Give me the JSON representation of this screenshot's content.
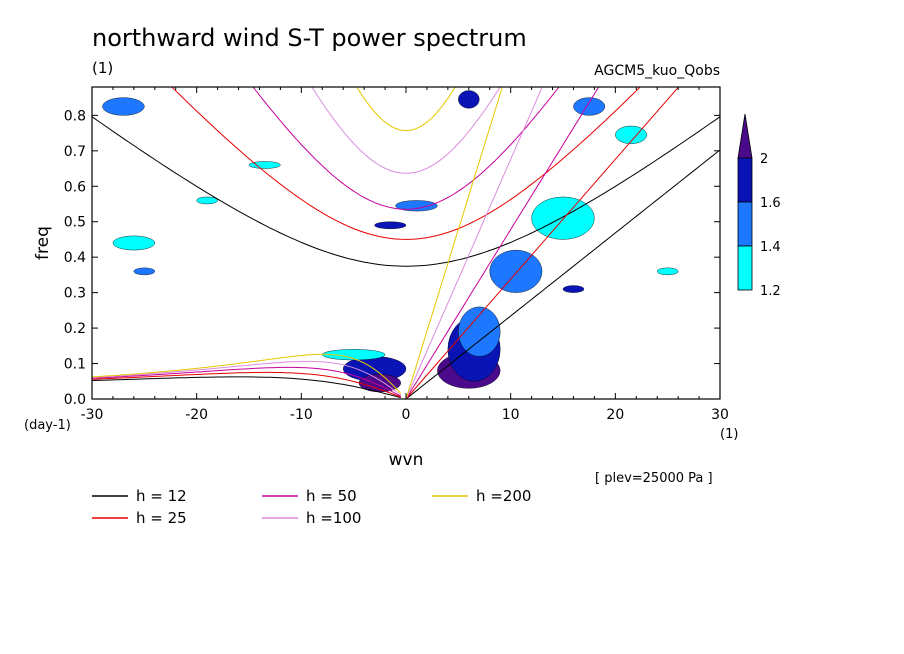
{
  "chart_data": {
    "type": "heatmap",
    "title": "northward wind S-T power spectrum",
    "unit_label": "(1)",
    "experiment": "AGCM5_kuo_Qobs",
    "xlabel": "wvn",
    "x_unit": "(1)",
    "ylabel": "freq",
    "y_unit": "(day-1)",
    "note": "[ plev=25000 Pa ]",
    "xlim": [
      -30,
      30
    ],
    "ylim": [
      0,
      0.88
    ],
    "x_ticks": [
      -30,
      -20,
      -10,
      0,
      10,
      20,
      30
    ],
    "x_tick_labels": [
      "-30",
      "-20",
      "-10",
      "0",
      "10",
      "20",
      "30"
    ],
    "y_ticks": [
      0,
      0.1,
      0.2,
      0.3,
      0.4,
      0.5,
      0.6,
      0.7,
      0.8
    ],
    "y_tick_labels": [
      "0.0",
      "0.1",
      "0.2",
      "0.3",
      "0.4",
      "0.5",
      "0.6",
      "0.7",
      "0.8"
    ],
    "colorbar": {
      "levels": [
        1.2,
        1.4,
        1.6,
        2
      ],
      "level_labels": [
        "1.2",
        "1.4",
        "1.6",
        "2"
      ],
      "colors": [
        "#00ffff",
        "#1e78ff",
        "#0a14b4",
        "#4b0a8c"
      ]
    },
    "power_regions": [
      {
        "x": -6,
        "y": 0.05,
        "w": 6,
        "h": 0.07,
        "level": 2
      },
      {
        "x": -4.5,
        "y": 0.02,
        "w": 4,
        "h": 0.05,
        "level": 3
      },
      {
        "x": 3,
        "y": 0.03,
        "w": 6,
        "h": 0.1,
        "level": 3
      },
      {
        "x": 4,
        "y": 0.05,
        "w": 5,
        "h": 0.18,
        "level": 2
      },
      {
        "x": 5,
        "y": 0.12,
        "w": 4,
        "h": 0.14,
        "level": 1
      },
      {
        "x": 8,
        "y": 0.3,
        "w": 5,
        "h": 0.12,
        "level": 1
      },
      {
        "x": 12,
        "y": 0.45,
        "w": 6,
        "h": 0.12,
        "level": 0
      },
      {
        "x": -3,
        "y": 0.48,
        "w": 3,
        "h": 0.02,
        "level": 2
      },
      {
        "x": -1,
        "y": 0.53,
        "w": 4,
        "h": 0.03,
        "level": 1
      },
      {
        "x": -8,
        "y": 0.11,
        "w": 6,
        "h": 0.03,
        "level": 0
      },
      {
        "x": -28,
        "y": 0.42,
        "w": 4,
        "h": 0.04,
        "level": 0
      },
      {
        "x": -26,
        "y": 0.35,
        "w": 2,
        "h": 0.02,
        "level": 1
      },
      {
        "x": -29,
        "y": 0.8,
        "w": 4,
        "h": 0.05,
        "level": 1
      },
      {
        "x": 5,
        "y": 0.82,
        "w": 2,
        "h": 0.05,
        "level": 2
      },
      {
        "x": 16,
        "y": 0.8,
        "w": 3,
        "h": 0.05,
        "level": 1
      },
      {
        "x": 20,
        "y": 0.72,
        "w": 3,
        "h": 0.05,
        "level": 0
      },
      {
        "x": -20,
        "y": 0.55,
        "w": 2,
        "h": 0.02,
        "level": 0
      },
      {
        "x": 15,
        "y": 0.3,
        "w": 2,
        "h": 0.02,
        "level": 2
      },
      {
        "x": 24,
        "y": 0.35,
        "w": 2,
        "h": 0.02,
        "level": 0
      },
      {
        "x": -15,
        "y": 0.65,
        "w": 3,
        "h": 0.02,
        "level": 0
      }
    ],
    "dispersion_curves": [
      {
        "name": "h = 12",
        "h": 12,
        "color": "#000000"
      },
      {
        "name": "h = 25",
        "h": 25,
        "color": "#e60000"
      },
      {
        "name": "h = 50",
        "h": 50,
        "color": "#c8009b"
      },
      {
        "name": "h =100",
        "h": 100,
        "color": "#dc8cdc"
      },
      {
        "name": "h =200",
        "h": 200,
        "color": "#e6c800"
      }
    ]
  }
}
